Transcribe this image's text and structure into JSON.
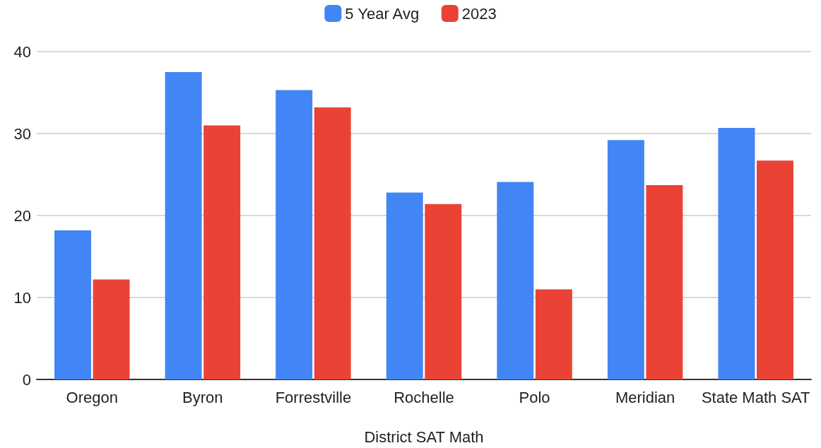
{
  "chart_data": {
    "type": "bar",
    "xlabel": "District SAT Math",
    "categories": [
      "Oregon",
      "Byron",
      "Forrestville",
      "Rochelle",
      "Polo",
      "Meridian",
      "State Math SAT"
    ],
    "series": [
      {
        "name": "5 Year Avg",
        "color": "#4285f4",
        "values": [
          18.2,
          37.5,
          35.3,
          22.8,
          24.1,
          29.2,
          30.7
        ]
      },
      {
        "name": "2023",
        "color": "#ea4335",
        "values": [
          12.2,
          31.0,
          33.2,
          21.4,
          11.0,
          23.7,
          26.7
        ]
      }
    ],
    "ylim": [
      0,
      40
    ],
    "yticks": [
      0,
      10,
      20,
      30,
      40
    ],
    "grid": "y",
    "legend": "top"
  }
}
